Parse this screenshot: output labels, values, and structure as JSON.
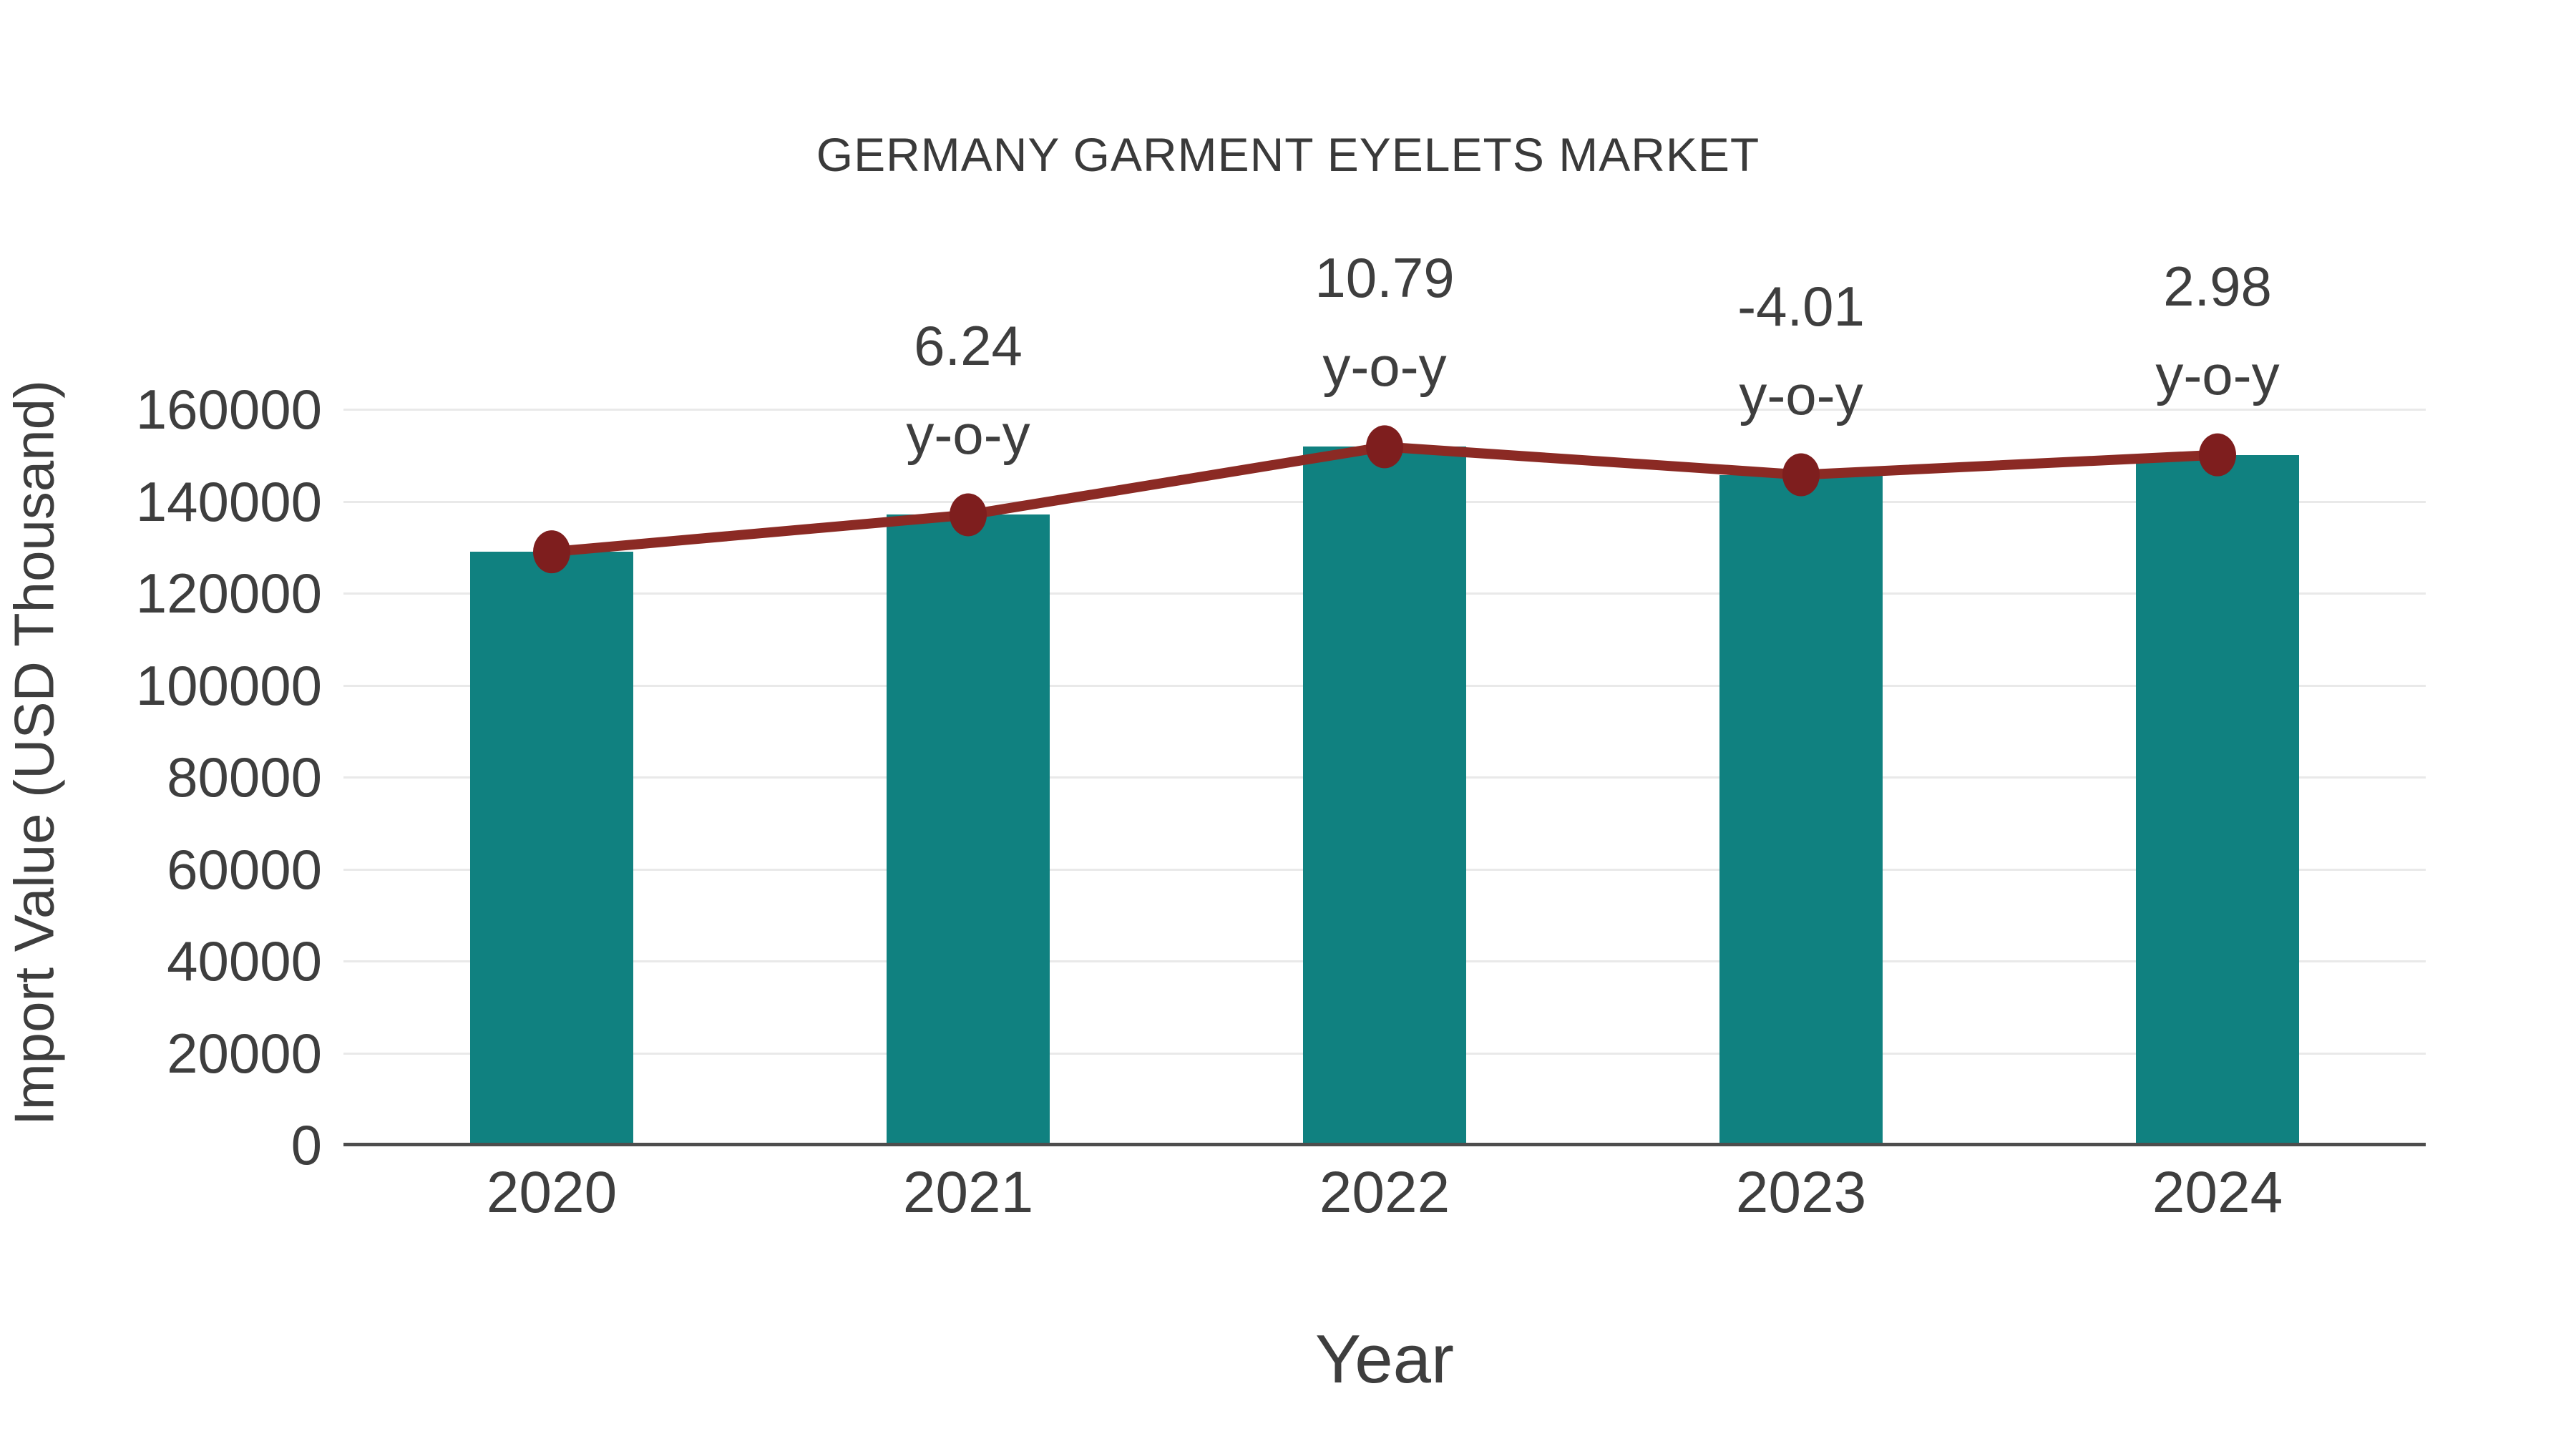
{
  "title": "GERMANY GARMENT EYELETS MARKET",
  "chart_data": {
    "type": "bar",
    "categories": [
      "2020",
      "2021",
      "2022",
      "2023",
      "2024"
    ],
    "series": [
      {
        "name": "Import Value",
        "type": "bar",
        "values": [
          129000,
          137050,
          151840,
          145750,
          150090
        ]
      },
      {
        "name": "Import Value trend",
        "type": "line",
        "values": [
          129000,
          137050,
          151840,
          145750,
          150090
        ]
      }
    ],
    "annotations": [
      {
        "category": "2021",
        "value": "6.24",
        "label": "y-o-y"
      },
      {
        "category": "2022",
        "value": "10.79",
        "label": "y-o-y"
      },
      {
        "category": "2023",
        "value": "-4.01",
        "label": "y-o-y"
      },
      {
        "category": "2024",
        "value": "2.98",
        "label": "y-o-y"
      }
    ],
    "title": "GERMANY GARMENT EYELETS MARKET",
    "xlabel": "Year",
    "ylabel": "Import Value (USD Thousand)",
    "ylim": [
      0,
      160000
    ],
    "yticks": [
      0,
      20000,
      40000,
      60000,
      80000,
      100000,
      120000,
      140000,
      160000
    ],
    "grid": "horizontal",
    "legend": "none",
    "colors": {
      "bar": "#108180",
      "line": "#8b2a24",
      "marker": "#7e1e1e",
      "gridline": "#e9e9e9",
      "axis": "#4d4d4d",
      "text": "#3e3e3e"
    }
  }
}
